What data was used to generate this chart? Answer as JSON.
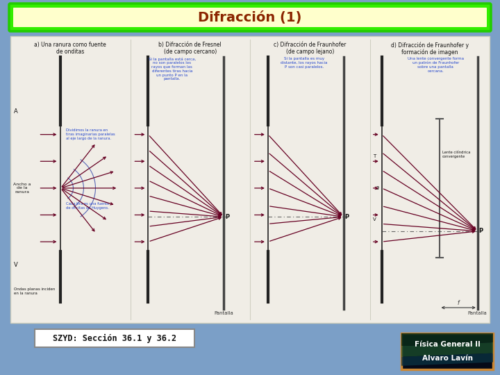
{
  "title": "Difracción (1)",
  "title_color": "#8B2500",
  "title_bg_inner": "#FFFFCC",
  "title_bg_outer": "#00FF00",
  "bg_color": "#7B9FC7",
  "content_bg": "#E8E4DC",
  "szyd_text": "SZYD: Sección 36.1 y 36.2",
  "szyd_box_bg": "#FFFFFF",
  "szyd_box_border": "#888888",
  "badge_text1": "Física General II",
  "badge_text2": "Alvaro Lavín",
  "badge_border": "#CC8833",
  "arrow_color": "#660022",
  "wave_color": "#3344AA",
  "slit_color": "#222222",
  "screen_color": "#444444",
  "axis_color": "#444444",
  "text_blue": "#2244CC",
  "text_dark": "#111111"
}
